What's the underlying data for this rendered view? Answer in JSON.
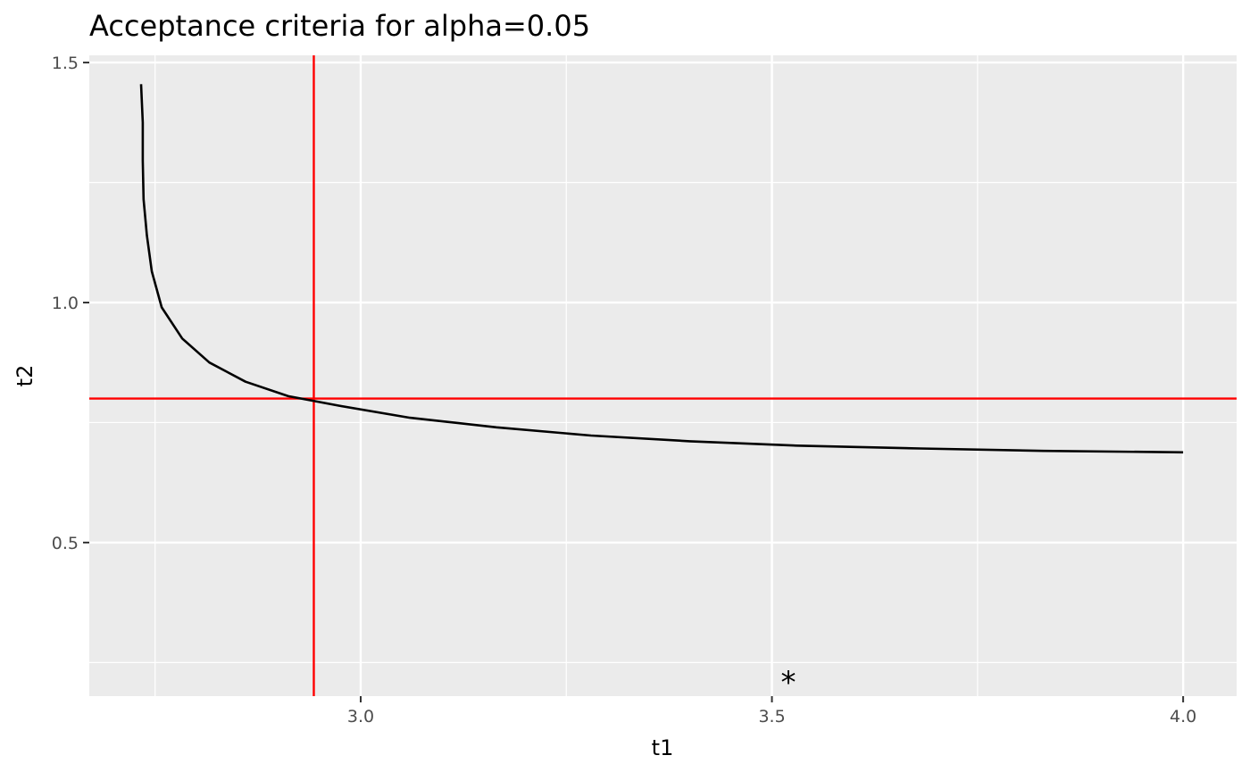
{
  "chart_data": {
    "type": "line",
    "title": "Acceptance criteria for alpha=0.05",
    "xlabel": "t1",
    "ylabel": "t2",
    "xlim": [
      2.67,
      4.065
    ],
    "ylim": [
      0.18,
      1.515
    ],
    "x_ticks": [
      3.0,
      3.5,
      4.0
    ],
    "x_tick_labels": [
      "3.0",
      "3.5",
      "4.0"
    ],
    "y_ticks": [
      0.5,
      1.0,
      1.5
    ],
    "y_tick_labels": [
      "0.5",
      "1.0",
      "1.5"
    ],
    "grid": true,
    "background": "#ebebeb",
    "series": [
      {
        "color": "#000000",
        "x": [
          2.733,
          2.735,
          2.735,
          2.736,
          2.74,
          2.746,
          2.758,
          2.783,
          2.816,
          2.86,
          2.912,
          2.974,
          3.06,
          3.165,
          3.28,
          3.4,
          3.53,
          3.68,
          3.83,
          4.0
        ],
        "y": [
          1.455,
          1.375,
          1.295,
          1.215,
          1.14,
          1.065,
          0.99,
          0.925,
          0.875,
          0.835,
          0.805,
          0.785,
          0.76,
          0.74,
          0.723,
          0.711,
          0.702,
          0.696,
          0.691,
          0.688
        ]
      }
    ],
    "reference_lines": {
      "color": "#ff0000",
      "vertical_x": 2.943,
      "horizontal_y": 0.8
    },
    "annotations": [
      {
        "text": "*",
        "x": 3.52,
        "y": 0.225
      }
    ]
  }
}
